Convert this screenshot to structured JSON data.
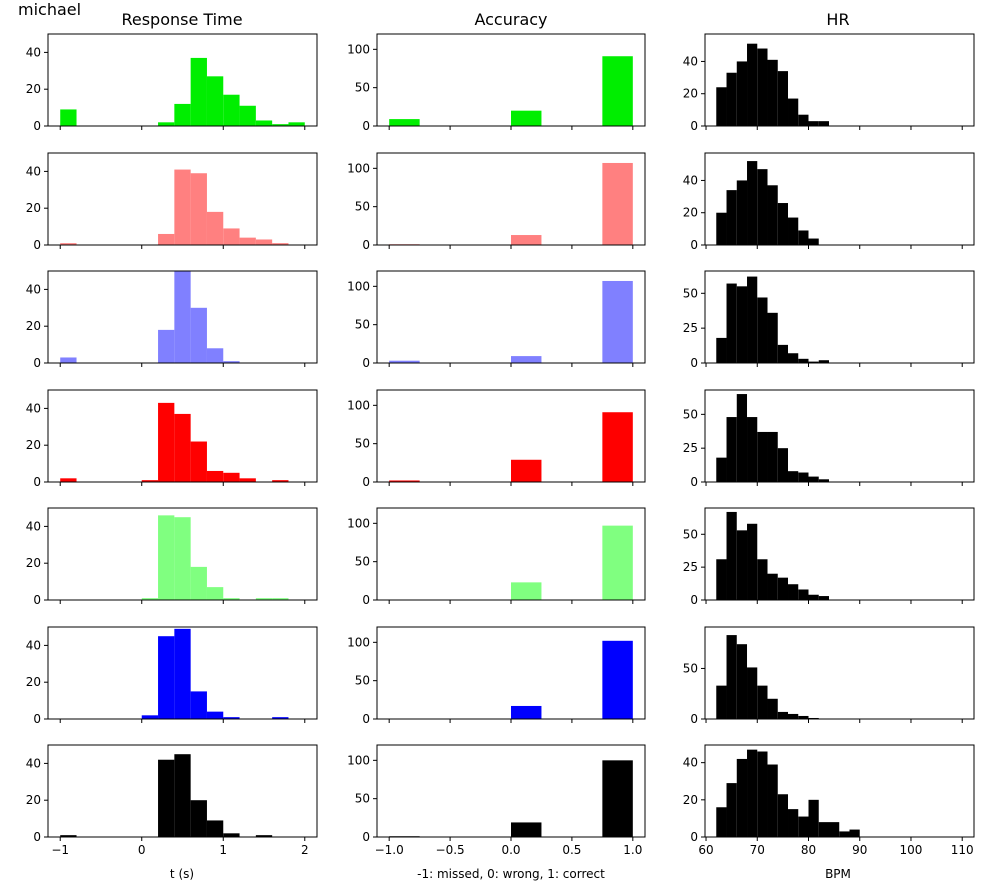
{
  "figure": {
    "suptitle": "michael",
    "column_titles": [
      "Response Time",
      "Accuracy",
      "HR"
    ],
    "xlabels": [
      "t (s)",
      "-1: missed, 0: wrong, 1: correct",
      "BPM"
    ]
  },
  "chart_data": [
    {
      "type": "bar",
      "title": "Response Time",
      "xlabel": "t (s)",
      "xlim": [
        -1.15,
        2.15
      ],
      "xticks": [
        -1,
        0,
        1,
        2
      ],
      "bin_start": -1.0,
      "bin_width": 0.2,
      "rows": [
        {
          "color": "#00ee00",
          "ylim": [
            0,
            50
          ],
          "yticks": [
            0,
            20,
            40
          ],
          "values": [
            9,
            0,
            0,
            0,
            0,
            0,
            2,
            12,
            37,
            27,
            17,
            11,
            3,
            1,
            2
          ]
        },
        {
          "color": "#ff8080",
          "ylim": [
            0,
            50
          ],
          "yticks": [
            0,
            20,
            40
          ],
          "values": [
            1,
            0,
            0,
            0,
            0,
            0,
            6,
            41,
            39,
            18,
            9,
            4,
            3,
            1,
            0
          ]
        },
        {
          "color": "#8080ff",
          "ylim": [
            0,
            50
          ],
          "yticks": [
            0,
            20,
            40
          ],
          "values": [
            3,
            0,
            0,
            0,
            0,
            0,
            18,
            50,
            30,
            8,
            1,
            0,
            0,
            0,
            0
          ]
        },
        {
          "color": "#ff0000",
          "ylim": [
            0,
            50
          ],
          "yticks": [
            0,
            20,
            40
          ],
          "values": [
            2,
            0,
            0,
            0,
            0,
            1,
            43,
            37,
            22,
            6,
            5,
            2,
            0,
            1,
            0
          ]
        },
        {
          "color": "#80ff80",
          "ylim": [
            0,
            50
          ],
          "yticks": [
            0,
            20,
            40
          ],
          "values": [
            0,
            0,
            0,
            0,
            0,
            1,
            46,
            45,
            18,
            7,
            1,
            0,
            1,
            1,
            0
          ]
        },
        {
          "color": "#0000ff",
          "ylim": [
            0,
            50
          ],
          "yticks": [
            0,
            20,
            40
          ],
          "values": [
            0,
            0,
            0,
            0,
            0,
            2,
            45,
            49,
            15,
            4,
            1,
            0,
            0,
            1,
            0
          ]
        },
        {
          "color": "#000000",
          "ylim": [
            0,
            50
          ],
          "yticks": [
            0,
            20,
            40
          ],
          "values": [
            1,
            0,
            0,
            0,
            0,
            0,
            42,
            45,
            20,
            9,
            2,
            0,
            1,
            0,
            0
          ]
        }
      ]
    },
    {
      "type": "bar",
      "title": "Accuracy",
      "xlabel": "-1: missed, 0: wrong, 1: correct",
      "xlim": [
        -1.1,
        1.1
      ],
      "xticks": [
        -1.0,
        -0.5,
        0.0,
        0.5,
        1.0
      ],
      "xtick_labels": [
        "−1.0",
        "−0.5",
        "0.0",
        "0.5",
        "1.0"
      ],
      "bins": [
        [
          -1.0,
          -0.75
        ],
        [
          0.0,
          0.25
        ],
        [
          0.75,
          1.0
        ]
      ],
      "rows": [
        {
          "color": "#00ee00",
          "ylim": [
            0,
            120
          ],
          "yticks": [
            0,
            50,
            100
          ],
          "values": [
            9,
            20,
            91
          ]
        },
        {
          "color": "#ff8080",
          "ylim": [
            0,
            120
          ],
          "yticks": [
            0,
            50,
            100
          ],
          "values": [
            1,
            13,
            107
          ]
        },
        {
          "color": "#8080ff",
          "ylim": [
            0,
            120
          ],
          "yticks": [
            0,
            50,
            100
          ],
          "values": [
            3,
            9,
            107
          ]
        },
        {
          "color": "#ff0000",
          "ylim": [
            0,
            120
          ],
          "yticks": [
            0,
            50,
            100
          ],
          "values": [
            2,
            29,
            91
          ]
        },
        {
          "color": "#80ff80",
          "ylim": [
            0,
            120
          ],
          "yticks": [
            0,
            50,
            100
          ],
          "values": [
            0,
            23,
            97
          ]
        },
        {
          "color": "#0000ff",
          "ylim": [
            0,
            120
          ],
          "yticks": [
            0,
            50,
            100
          ],
          "values": [
            0,
            17,
            102
          ]
        },
        {
          "color": "#000000",
          "ylim": [
            0,
            120
          ],
          "yticks": [
            0,
            50,
            100
          ],
          "values": [
            1,
            19,
            100
          ]
        }
      ]
    },
    {
      "type": "bar",
      "title": "HR",
      "xlabel": "BPM",
      "xlim": [
        59.8,
        112.3
      ],
      "xticks": [
        60,
        70,
        80,
        90,
        100,
        110
      ],
      "bin_start": 62,
      "bin_width": 2,
      "rows": [
        {
          "color": "#000000",
          "ylim": [
            0,
            57
          ],
          "yticks": [
            0,
            20,
            40
          ],
          "values": [
            24,
            33,
            40,
            51,
            48,
            41,
            34,
            17,
            7,
            3,
            3,
            0,
            0,
            0
          ]
        },
        {
          "color": "#000000",
          "ylim": [
            0,
            57
          ],
          "yticks": [
            0,
            20,
            40
          ],
          "values": [
            20,
            34,
            40,
            52,
            47,
            37,
            26,
            17,
            9,
            4,
            0,
            0,
            0,
            0
          ]
        },
        {
          "color": "#000000",
          "ylim": [
            0,
            66
          ],
          "yticks": [
            0,
            25,
            50
          ],
          "values": [
            18,
            57,
            55,
            62,
            47,
            36,
            13,
            7,
            3,
            1,
            2,
            0,
            0,
            0
          ]
        },
        {
          "color": "#000000",
          "ylim": [
            0,
            68
          ],
          "yticks": [
            0,
            25,
            50
          ],
          "values": [
            18,
            48,
            65,
            48,
            37,
            37,
            25,
            8,
            7,
            4,
            2,
            0,
            0,
            0
          ]
        },
        {
          "color": "#000000",
          "ylim": [
            0,
            70
          ],
          "yticks": [
            0,
            25,
            50
          ],
          "values": [
            31,
            67,
            53,
            58,
            31,
            20,
            17,
            12,
            8,
            4,
            3,
            0,
            0,
            0
          ]
        },
        {
          "color": "#000000",
          "ylim": [
            0,
            91
          ],
          "yticks": [
            0,
            50
          ],
          "values": [
            33,
            83,
            74,
            51,
            33,
            20,
            7,
            5,
            3,
            1,
            0,
            0,
            0,
            0
          ]
        },
        {
          "color": "#000000",
          "ylim": [
            0,
            49.5
          ],
          "yticks": [
            0,
            20,
            40
          ],
          "values": [
            16,
            29,
            42,
            47,
            46,
            39,
            23,
            15,
            11,
            20,
            8,
            8,
            3,
            4
          ]
        }
      ]
    }
  ]
}
